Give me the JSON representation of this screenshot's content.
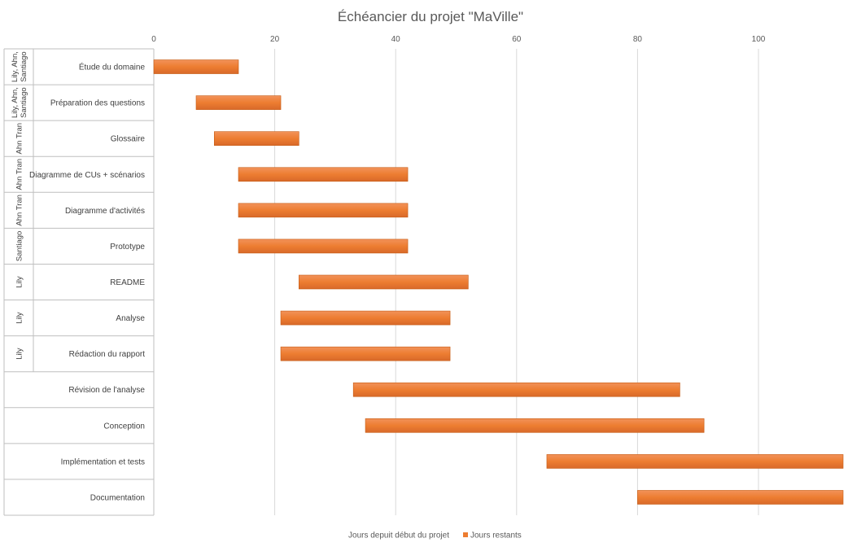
{
  "chart_data": {
    "type": "bar",
    "orientation": "horizontal",
    "stacked": true,
    "title": "Échéancier du projet \"MaVille\"",
    "xlabel": "",
    "ylabel": "",
    "xlim": [
      0,
      114
    ],
    "xticks": [
      0,
      20,
      40,
      60,
      80,
      100
    ],
    "grid": true,
    "legend_position": "bottom",
    "categories": [
      "Étude du domaine",
      "Préparation des questions",
      "Glossaire",
      "Diagramme de CUs + scénarios",
      "Diagramme d'activités",
      "Prototype",
      "README",
      "Analyse",
      "Rédaction du rapport",
      "Révision de l'analyse",
      "Conception",
      "Implémentation et tests",
      "Documentation"
    ],
    "groups": [
      [
        "Lily, Ahn,",
        "Santiago"
      ],
      [
        "Lily, Ahn,",
        "Santiago"
      ],
      [
        "Ahn Tran"
      ],
      [
        "Ahn Tran"
      ],
      [
        "Ahn Tran"
      ],
      [
        "Santiago"
      ],
      [
        "Lily"
      ],
      [
        "Lily"
      ],
      [
        "Lily"
      ],
      [],
      [],
      [],
      []
    ],
    "series": [
      {
        "name": "Jours depuit début du projet",
        "color": "none",
        "values": [
          0,
          7,
          10,
          14,
          14,
          14,
          24,
          21,
          21,
          33,
          35,
          65,
          80
        ]
      },
      {
        "name": "Jours restants",
        "color": "#ed7d31",
        "values": [
          14,
          14,
          14,
          28,
          28,
          28,
          28,
          28,
          28,
          54,
          56,
          50,
          35
        ]
      }
    ]
  }
}
